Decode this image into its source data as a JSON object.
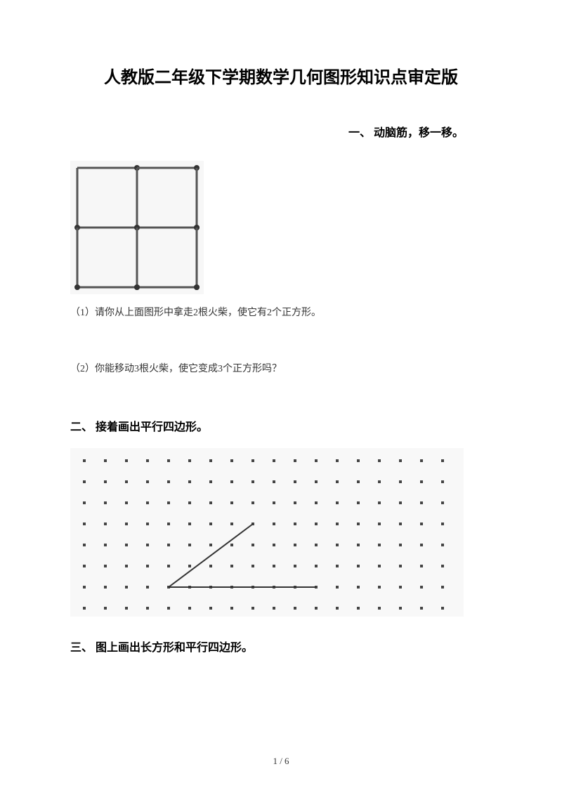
{
  "title": "人教版二年级下学期数学几何图形知识点审定版",
  "section1": {
    "heading": "一、 动脑筋，移一移。",
    "q1": "（1）请你从上面图形中拿走2根火柴，使它有2个正方形。",
    "q2": "（2）你能移动3根火柴，使它变成3个正方形吗？"
  },
  "section2": {
    "heading": "二、 接着画出平行四边形。"
  },
  "section3": {
    "heading": "三、 图上画出长方形和平行四边形。"
  },
  "pageNumber": "1 / 6",
  "matchstick": {
    "stroke": "#555555",
    "head_fill": "#333333",
    "background": "#f7f7f7",
    "stick_width": 3
  },
  "dotGrid": {
    "rows": 8,
    "cols": 18,
    "spacing": 30,
    "offsetX": 20,
    "offsetY": 18,
    "dot_color": "#444444",
    "dot_size": 4,
    "background": "#f8f8f8",
    "line_color": "#333333",
    "line_width": 2,
    "shape": {
      "vertex": {
        "col": 4,
        "row": 6
      },
      "p1": {
        "col": 8,
        "row": 3
      },
      "p2": {
        "col": 11,
        "row": 6
      }
    }
  }
}
